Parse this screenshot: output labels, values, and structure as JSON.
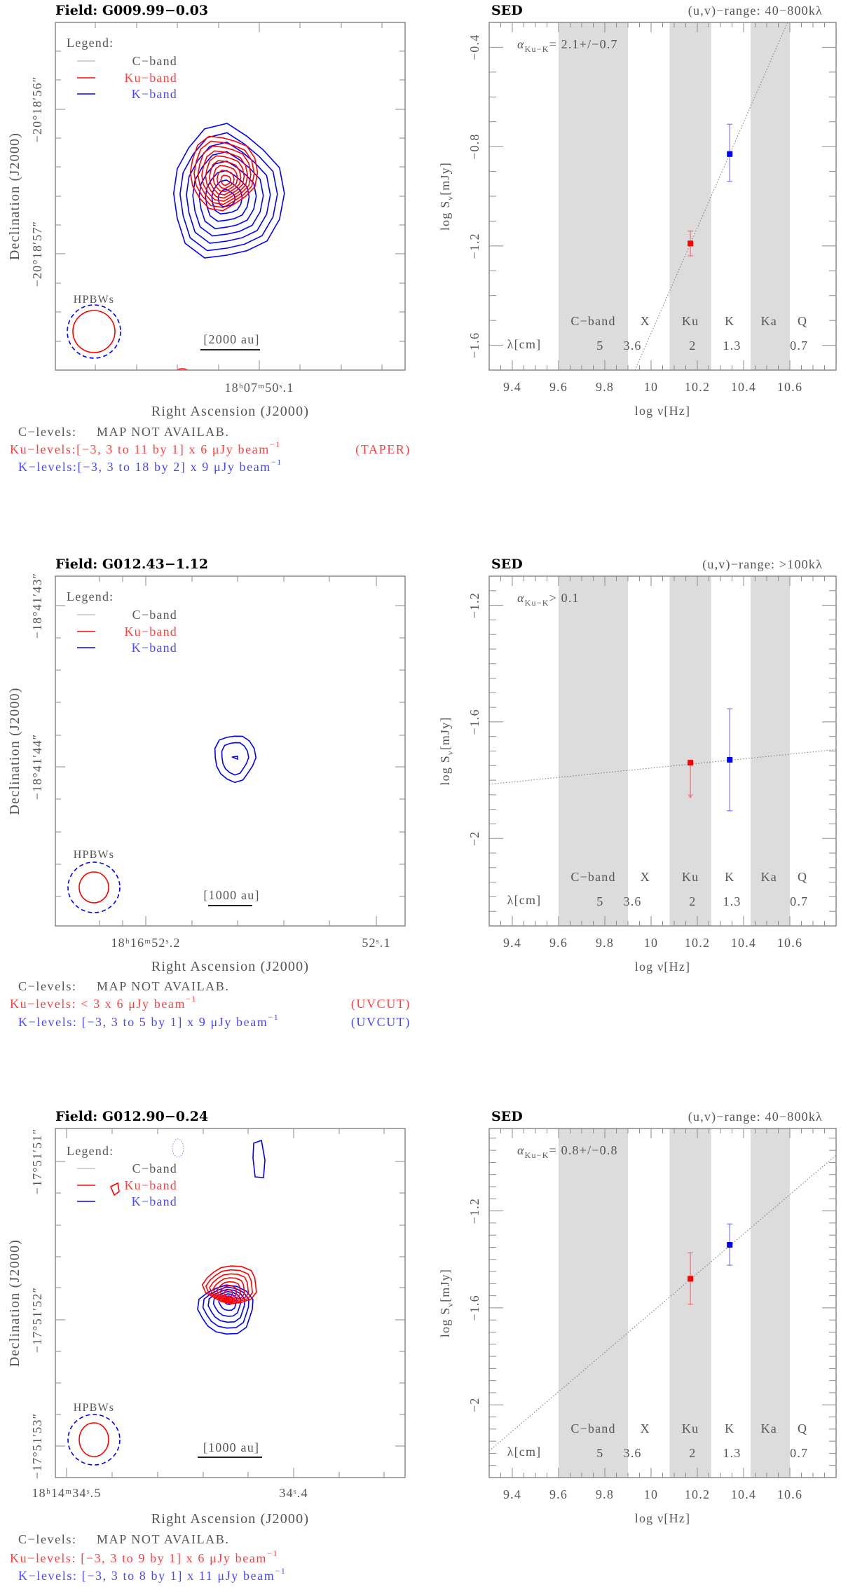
{
  "colors": {
    "c_band": "#888888",
    "ku_band": "#ff0000",
    "k_band": "#0000ff",
    "ku_text": "#ff4040",
    "k_text": "#4848ff",
    "band_shade": "#dcdcdc",
    "axis": "#8a8a8a",
    "fit_line": "#777777"
  },
  "panels": [
    {
      "map": {
        "title": "Field: G009.99−0.03",
        "legend": {
          "title": "Legend:",
          "items": [
            {
              "label": "C−band",
              "color": "#888888"
            },
            {
              "label": "Ku−band",
              "color": "#ff0000"
            },
            {
              "label": "K−band",
              "color": "#0000ff"
            }
          ]
        },
        "hpbw_label": "HPBWs",
        "scale_bar": "[2000 au]",
        "ra_ticks": [
          "18ʰ07ᵐ50ˢ.1"
        ],
        "dec_ticks": [
          "−20°18′56″",
          "−20°18′57″"
        ],
        "xlabel": "Right Ascension (J2000)",
        "ylabel": "Declination (J2000)",
        "levels": {
          "c_label": "C−levels:",
          "c_value": "MAP NOT AVAILAB.",
          "ku": "Ku−levels:[−3, 3 to 11 by 1] x  6 μJy beam",
          "ku_exp": "−1",
          "ku_note": "(TAPER)",
          "k": "K−levels:[−3, 3 to 18 by 2] x  9 μJy beam",
          "k_exp": "−1",
          "k_note": ""
        }
      },
      "sed": {
        "title": "SED",
        "uv_range": "(u,v)−range:  40−800kλ",
        "alpha": {
          "symbol": "α",
          "sub": "Ku−K",
          "text": "=  2.1+/−0.7"
        }
      }
    },
    {
      "map": {
        "title": "Field: G012.43−1.12",
        "legend": {
          "title": "Legend:",
          "items": [
            {
              "label": "C−band",
              "color": "#888888"
            },
            {
              "label": "Ku−band",
              "color": "#ff0000"
            },
            {
              "label": "K−band",
              "color": "#0000ff"
            }
          ]
        },
        "hpbw_label": "HPBWs",
        "scale_bar": "[1000 au]",
        "ra_ticks": [
          "18ʰ16ᵐ52ˢ.2",
          "52ˢ.1"
        ],
        "dec_ticks": [
          "−18°41′43″",
          "−18°41′44″"
        ],
        "xlabel": "Right Ascension (J2000)",
        "ylabel": "Declination (J2000)",
        "levels": {
          "c_label": "C−levels:",
          "c_value": "MAP NOT AVAILAB.",
          "ku": "Ku−levels:  < 3 x 6 μJy beam",
          "ku_exp": "−1",
          "ku_note": "(UVCUT)",
          "k": "K−levels: [−3, 3 to 5 by 1] x  9 μJy beam",
          "k_exp": "−1",
          "k_note": "(UVCUT)"
        }
      },
      "sed": {
        "title": "SED",
        "uv_range": "(u,v)−range:  >100kλ",
        "alpha": {
          "symbol": "α",
          "sub": "Ku−K",
          "text": "> 0.1"
        }
      }
    },
    {
      "map": {
        "title": "Field: G012.90−0.24",
        "legend": {
          "title": "Legend:",
          "items": [
            {
              "label": "C−band",
              "color": "#888888"
            },
            {
              "label": "Ku−band",
              "color": "#ff0000"
            },
            {
              "label": "K−band",
              "color": "#0000ff"
            }
          ]
        },
        "hpbw_label": "HPBWs",
        "scale_bar": "[1000 au]",
        "ra_ticks": [
          "18ʰ14ᵐ34ˢ.5",
          "34ˢ.4"
        ],
        "dec_ticks": [
          "−17°51′51″",
          "−17°51′52″",
          "−17°51′53″"
        ],
        "xlabel": "Right Ascension (J2000)",
        "ylabel": "Declination (J2000)",
        "levels": {
          "c_label": "C−levels:",
          "c_value": "MAP NOT AVAILAB.",
          "ku": "Ku−levels: [−3, 3 to 9 by 1] x  6 μJy beam",
          "ku_exp": "−1",
          "ku_note": "",
          "k": "K−levels: [−3, 3 to 8 by 1] x 11 μJy beam",
          "k_exp": "−1",
          "k_note": ""
        }
      },
      "sed": {
        "title": "SED",
        "uv_range": "(u,v)−range:  40−800kλ",
        "alpha": {
          "symbol": "α",
          "sub": "Ku−K",
          "text": "=  0.8+/−0.8"
        }
      }
    }
  ],
  "chart_data": [
    {
      "type": "scatter",
      "title": "SED",
      "xlabel": "log ν[Hz]",
      "ylabel": {
        "main": "log S",
        "sub": "ν",
        "rest": "[mJy]"
      },
      "xlim": [
        9.3,
        10.8
      ],
      "ylim": [
        -1.7,
        -0.3
      ],
      "xticks": [
        9.4,
        9.6,
        9.8,
        10.0,
        10.2,
        10.4,
        10.6
      ],
      "xtick_labels": [
        "9.4",
        "9.6",
        "9.8",
        "10",
        "10.2",
        "10.4",
        "10.6"
      ],
      "yticks": [
        -0.4,
        -0.8,
        -1.2,
        -1.6
      ],
      "ytick_labels": [
        "−0.4",
        "−0.8",
        "−1.2",
        "−1.6"
      ],
      "y_minor": 0.1,
      "shaded_bands": [
        [
          9.6,
          9.9
        ],
        [
          10.08,
          10.26
        ],
        [
          10.43,
          10.6
        ]
      ],
      "band_labels": [
        {
          "label": "C−band",
          "x": 9.75
        },
        {
          "label": "X",
          "x": 9.975
        },
        {
          "label": "Ku",
          "x": 10.17
        },
        {
          "label": "K",
          "x": 10.34
        },
        {
          "label": "Ka",
          "x": 10.51
        },
        {
          "label": "Q",
          "x": 10.655
        }
      ],
      "wavelength_title": "λ[cm]",
      "wavelengths": [
        {
          "label": "5",
          "x": 9.78
        },
        {
          "label": "3.6",
          "x": 9.92
        },
        {
          "label": "2",
          "x": 10.18
        },
        {
          "label": "1.3",
          "x": 10.35
        },
        {
          "label": "0.7",
          "x": 10.64
        }
      ],
      "points": [
        {
          "x": 10.17,
          "y": -1.19,
          "err_low": -1.24,
          "err_high": -1.14,
          "color": "#ff0000",
          "upper_limit": false
        },
        {
          "x": 10.34,
          "y": -0.83,
          "err_low": -0.94,
          "err_high": -0.71,
          "color": "#0000ff",
          "upper_limit": false
        }
      ],
      "fit_line": [
        [
          9.93,
          -1.7
        ],
        [
          10.59,
          -0.3
        ]
      ]
    },
    {
      "type": "scatter",
      "title": "SED",
      "xlabel": "log ν[Hz]",
      "ylabel": {
        "main": "log S",
        "sub": "ν",
        "rest": "[mJy]"
      },
      "xlim": [
        9.3,
        10.8
      ],
      "ylim": [
        -2.3,
        -1.1
      ],
      "xticks": [
        9.4,
        9.6,
        9.8,
        10.0,
        10.2,
        10.4,
        10.6
      ],
      "xtick_labels": [
        "9.4",
        "9.6",
        "9.8",
        "10",
        "10.2",
        "10.4",
        "10.6"
      ],
      "yticks": [
        -1.2,
        -1.6,
        -2.0
      ],
      "ytick_labels": [
        "−1.2",
        "−1.6",
        "−2"
      ],
      "y_minor": 0.05,
      "shaded_bands": [
        [
          9.6,
          9.9
        ],
        [
          10.08,
          10.26
        ],
        [
          10.43,
          10.6
        ]
      ],
      "band_labels": [
        {
          "label": "C−band",
          "x": 9.75
        },
        {
          "label": "X",
          "x": 9.975
        },
        {
          "label": "Ku",
          "x": 10.17
        },
        {
          "label": "K",
          "x": 10.34
        },
        {
          "label": "Ka",
          "x": 10.51
        },
        {
          "label": "Q",
          "x": 10.655
        }
      ],
      "wavelength_title": "λ[cm]",
      "wavelengths": [
        {
          "label": "5",
          "x": 9.78
        },
        {
          "label": "3.6",
          "x": 9.92
        },
        {
          "label": "2",
          "x": 10.18
        },
        {
          "label": "1.3",
          "x": 10.35
        },
        {
          "label": "0.7",
          "x": 10.64
        }
      ],
      "points": [
        {
          "x": 10.17,
          "y": -1.74,
          "upper_limit": true,
          "arrow_to": -1.86,
          "color": "#ff0000"
        },
        {
          "x": 10.34,
          "y": -1.73,
          "err_low": -1.905,
          "err_high": -1.555,
          "color": "#0000ff",
          "upper_limit": false
        }
      ],
      "fit_line": [
        [
          9.3,
          -1.814
        ],
        [
          10.8,
          -1.695
        ]
      ]
    },
    {
      "type": "scatter",
      "title": "SED",
      "xlabel": "log ν[Hz]",
      "ylabel": {
        "main": "log S",
        "sub": "ν",
        "rest": "[mJy]"
      },
      "xlim": [
        9.3,
        10.8
      ],
      "ylim": [
        -2.3,
        -0.86
      ],
      "xticks": [
        9.4,
        9.6,
        9.8,
        10.0,
        10.2,
        10.4,
        10.6
      ],
      "xtick_labels": [
        "9.4",
        "9.6",
        "9.8",
        "10",
        "10.2",
        "10.4",
        "10.6"
      ],
      "yticks": [
        -1.2,
        -1.6,
        -2.0
      ],
      "ytick_labels": [
        "−1.2",
        "−1.6",
        "−2"
      ],
      "y_minor": 0.05,
      "shaded_bands": [
        [
          9.6,
          9.9
        ],
        [
          10.08,
          10.26
        ],
        [
          10.43,
          10.6
        ]
      ],
      "band_labels": [
        {
          "label": "C−band",
          "x": 9.75
        },
        {
          "label": "X",
          "x": 9.975
        },
        {
          "label": "Ku",
          "x": 10.17
        },
        {
          "label": "K",
          "x": 10.34
        },
        {
          "label": "Ka",
          "x": 10.51
        },
        {
          "label": "Q",
          "x": 10.655
        }
      ],
      "wavelength_title": "λ[cm]",
      "wavelengths": [
        {
          "label": "5",
          "x": 9.78
        },
        {
          "label": "3.6",
          "x": 9.92
        },
        {
          "label": "2",
          "x": 10.18
        },
        {
          "label": "1.3",
          "x": 10.35
        },
        {
          "label": "0.7",
          "x": 10.64
        }
      ],
      "points": [
        {
          "x": 10.17,
          "y": -1.48,
          "err_low": -1.585,
          "err_high": -1.373,
          "color": "#ff0000",
          "upper_limit": false
        },
        {
          "x": 10.34,
          "y": -1.34,
          "err_low": -1.424,
          "err_high": -1.254,
          "color": "#0000ff",
          "upper_limit": false
        }
      ],
      "fit_line": [
        [
          9.3,
          -2.19
        ],
        [
          10.8,
          -0.97
        ]
      ]
    }
  ]
}
